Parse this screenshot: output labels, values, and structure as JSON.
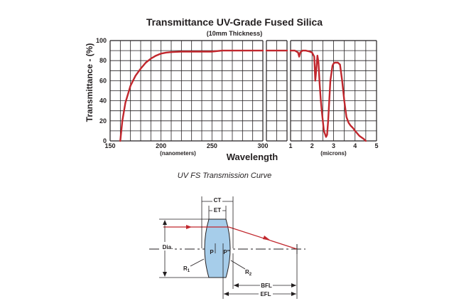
{
  "chart_data": {
    "type": "line",
    "title": "Transmittance UV-Grade Fused Silica",
    "subtitle": "(10mm Thickness)",
    "ylabel": "Transmittance - (%)",
    "xlabel": "Wavelength",
    "ylim": [
      0,
      100
    ],
    "y_ticks": [
      "0",
      "20",
      "40",
      "60",
      "80",
      "100"
    ],
    "grid": true,
    "color": "#c1272d",
    "panels": [
      {
        "x_unit": "(nanometers)",
        "xlim": [
          150,
          300
        ],
        "x_ticks": [
          "150",
          "200",
          "250",
          "300"
        ],
        "series": [
          {
            "x": [
              160,
              162,
              165,
              170,
              175,
              180,
              185,
              190,
              195,
              200,
              205,
              210,
              220,
              230,
              240,
              250,
              260,
              270,
              280,
              290,
              300
            ],
            "y": [
              0,
              20,
              38,
              55,
              65,
              72,
              78,
              82,
              85,
              87,
              88,
              88.5,
              89,
              89,
              89,
              89,
              90,
              90,
              90,
              90,
              90
            ]
          }
        ]
      },
      {
        "x_unit": "",
        "xlim": [
          300,
          1000
        ],
        "x_ticks": [],
        "series": [
          {
            "x": [
              300,
              1000
            ],
            "y": [
              90,
              90
            ]
          }
        ]
      },
      {
        "x_unit": "(microns)",
        "xlim": [
          1,
          5
        ],
        "x_ticks": [
          "1",
          "2",
          "3",
          "4",
          "5"
        ],
        "series": [
          {
            "x": [
              1.0,
              1.2,
              1.35,
              1.4,
              1.45,
              1.55,
              1.7,
              1.9,
              2.0,
              2.1,
              2.15,
              2.2,
              2.25,
              2.3,
              2.35,
              2.4,
              2.45,
              2.55,
              2.65,
              2.7,
              2.75,
              2.85,
              2.95,
              3.0,
              3.05,
              3.1,
              3.2,
              3.3,
              3.4,
              3.5,
              3.6,
              3.7,
              3.8,
              3.9,
              4.0,
              4.2,
              4.4,
              4.5
            ],
            "y": [
              90,
              90,
              88,
              84,
              88,
              90,
              90,
              89,
              88,
              84,
              60,
              72,
              85,
              78,
              58,
              42,
              30,
              10,
              4,
              6,
              20,
              60,
              75,
              77,
              78,
              78,
              78,
              76,
              60,
              40,
              24,
              18,
              15,
              13,
              10,
              5,
              2,
              0
            ]
          }
        ]
      }
    ]
  },
  "caption": "UV FS Transmission Curve",
  "diagram": {
    "labels": {
      "ct": "CT",
      "et": "ET",
      "dia": "Dia.",
      "p": "P",
      "p_prime": "P\"",
      "r1": "R",
      "r1_sub": "1",
      "r2": "R",
      "r2_sub": "2",
      "bfl": "BFL",
      "efl": "EFL"
    },
    "lens_fill": "#a6cdea",
    "ray_color": "#c1272d"
  }
}
